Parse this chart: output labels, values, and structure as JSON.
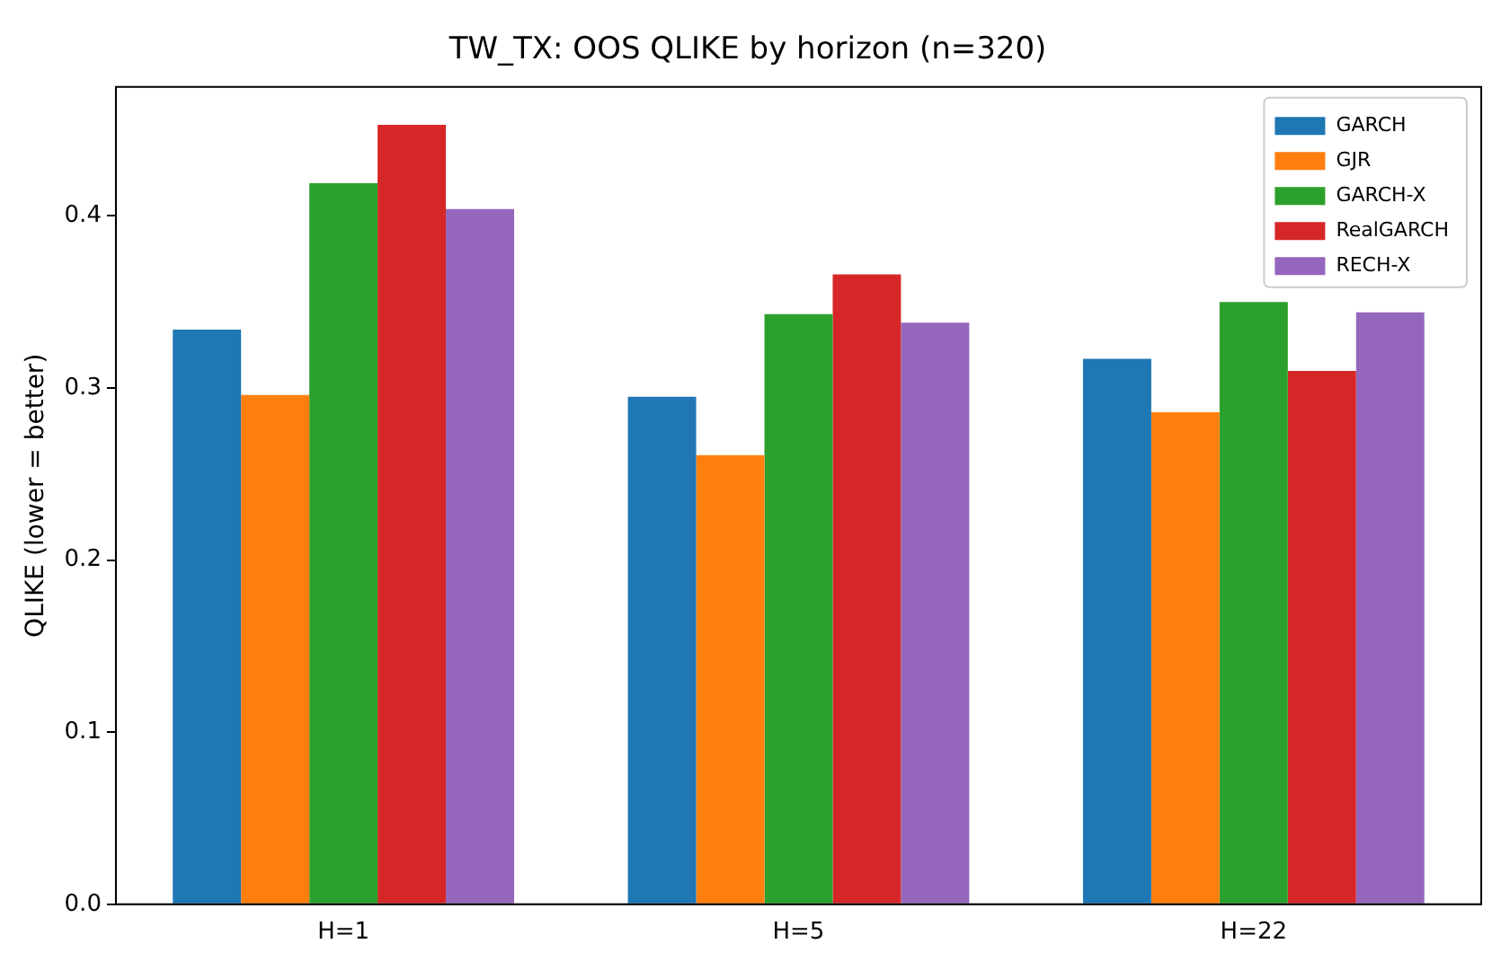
{
  "chart_data": {
    "type": "bar",
    "title": "TW_TX: OOS QLIKE by horizon (n=320)",
    "ylabel": "QLIKE (lower = better)",
    "categories": [
      "H=1",
      "H=5",
      "H=22"
    ],
    "series": [
      {
        "name": "GARCH",
        "color": "#1f77b4",
        "values": [
          0.334,
          0.295,
          0.317
        ]
      },
      {
        "name": "GJR",
        "color": "#ff7f0e",
        "values": [
          0.296,
          0.261,
          0.286
        ]
      },
      {
        "name": "GARCH-X",
        "color": "#2ca02c",
        "values": [
          0.419,
          0.343,
          0.35
        ]
      },
      {
        "name": "RealGARCH",
        "color": "#d62728",
        "values": [
          0.453,
          0.366,
          0.31
        ]
      },
      {
        "name": "RECH-X",
        "color": "#9467bd",
        "values": [
          0.404,
          0.338,
          0.344
        ]
      }
    ],
    "ylim": [
      0,
      0.475
    ],
    "yticks": [
      {
        "value": 0,
        "label": "0.0"
      },
      0.1,
      0.2,
      0.3,
      0.4
    ],
    "grid": false,
    "legend": "top right"
  }
}
